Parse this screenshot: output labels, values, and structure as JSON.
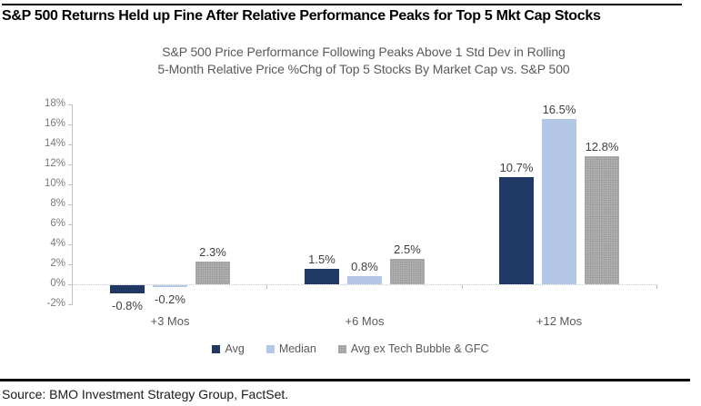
{
  "header": {
    "title": "S&P 500 Returns Held up Fine After Relative Performance Peaks for Top 5 Mkt Cap Stocks"
  },
  "chart_data": {
    "type": "bar",
    "title_lines": [
      "S&P 500 Price Performance Following Peaks Above 1 Std Dev in Rolling",
      "5-Month Relative Price %Chg of Top 5 Stocks By Market Cap vs. S&P 500"
    ],
    "categories": [
      "+3 Mos",
      "+6 Mos",
      "+12 Mos"
    ],
    "series": [
      {
        "name": "Avg",
        "values": [
          -0.8,
          1.5,
          10.7
        ],
        "labels": [
          "-0.8%",
          "1.5%",
          "10.7%"
        ],
        "color": "#1F3864",
        "pattern": false
      },
      {
        "name": "Median",
        "values": [
          -0.2,
          0.8,
          16.5
        ],
        "labels": [
          "-0.2%",
          "0.8%",
          "16.5%"
        ],
        "color": "#B4C7E7",
        "pattern": false
      },
      {
        "name": "Avg ex Tech Bubble & GFC",
        "values": [
          2.3,
          2.5,
          12.8
        ],
        "labels": [
          "2.3%",
          "2.5%",
          "12.8%"
        ],
        "color": "#A6A6A6",
        "pattern": true
      }
    ],
    "ylabel": "",
    "xlabel": "",
    "ylim": [
      -2,
      18
    ],
    "y_tick_step": 2,
    "y_tick_labels": [
      "18%",
      "16%",
      "14%",
      "12%",
      "10%",
      "8%",
      "6%",
      "4%",
      "2%",
      "0%",
      "-2%"
    ],
    "grid": false,
    "zero_line": "dotted",
    "legend_position": "bottom"
  },
  "footer": {
    "source": "Source: BMO Investment Strategy Group, FactSet."
  }
}
